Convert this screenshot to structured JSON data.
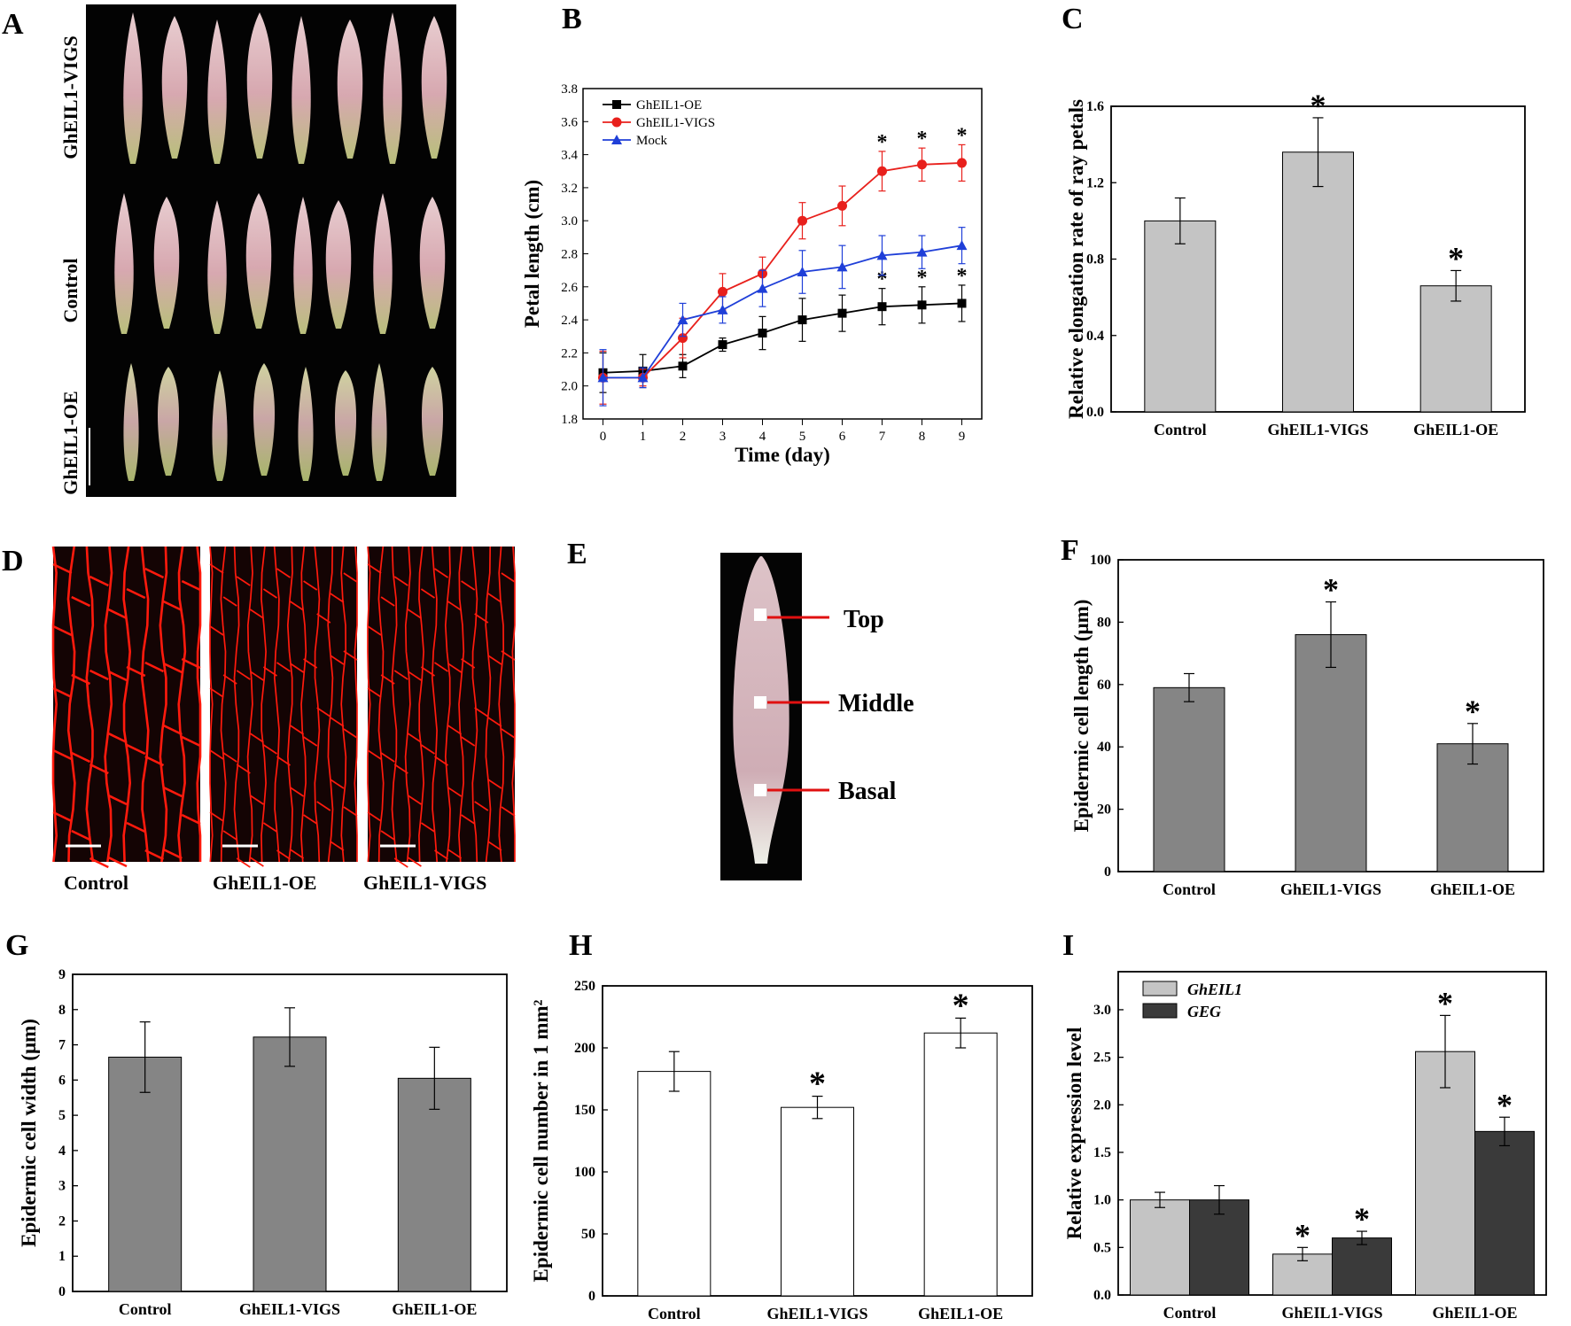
{
  "panel_letters": [
    "A",
    "B",
    "C",
    "D",
    "E",
    "F",
    "G",
    "H",
    "I"
  ],
  "colors": {
    "oe": "#000000",
    "vigs": "#e8201c",
    "mock": "#1f3fd8",
    "light_bar": "#c4c4c4",
    "mid_bar": "#858585",
    "dark_bar": "#3a3a3a",
    "cell_wall": "#ff1a0d"
  },
  "panel_a": {
    "row_labels": [
      "GhEIL1-VIGS",
      "Control",
      "GhEIL1-OE"
    ]
  },
  "panel_d": {
    "image_labels": [
      "Control",
      "GhEIL1-OE",
      "GhEIL1-VIGS"
    ]
  },
  "panel_e": {
    "regions": [
      "Top",
      "Middle",
      "Basal"
    ]
  },
  "chart_data": [
    {
      "panel": "B",
      "type": "line",
      "title": "",
      "xlabel": "Time (day)",
      "ylabel": "Petal length (cm)",
      "x": [
        0,
        1,
        2,
        3,
        4,
        5,
        6,
        7,
        8,
        9
      ],
      "xlim": [
        -0.5,
        9.5
      ],
      "ylim": [
        1.8,
        3.8
      ],
      "yticks": [
        "1.8",
        "2.0",
        "2.2",
        "2.4",
        "2.6",
        "2.8",
        "3.0",
        "3.2",
        "3.4",
        "3.6",
        "3.8"
      ],
      "legend": "top-left",
      "series": [
        {
          "name": "GhEIL1-OE",
          "marker": "square",
          "values": [
            2.08,
            2.09,
            2.12,
            2.25,
            2.32,
            2.4,
            2.44,
            2.48,
            2.49,
            2.5
          ],
          "errors": [
            0.12,
            0.1,
            0.07,
            0.04,
            0.1,
            0.13,
            0.11,
            0.11,
            0.11,
            0.11
          ],
          "significant": [
            false,
            false,
            false,
            false,
            false,
            false,
            false,
            true,
            true,
            true
          ]
        },
        {
          "name": "GhEIL1-VIGS",
          "marker": "circle",
          "values": [
            2.05,
            2.05,
            2.29,
            2.57,
            2.68,
            3.0,
            3.09,
            3.3,
            3.34,
            3.35
          ],
          "errors": [
            0.16,
            0.05,
            0.12,
            0.11,
            0.1,
            0.11,
            0.12,
            0.12,
            0.1,
            0.11
          ],
          "significant": [
            false,
            false,
            false,
            false,
            false,
            false,
            false,
            true,
            true,
            true
          ]
        },
        {
          "name": "Mock",
          "marker": "triangle",
          "values": [
            2.05,
            2.05,
            2.4,
            2.46,
            2.59,
            2.69,
            2.72,
            2.79,
            2.81,
            2.85
          ],
          "errors": [
            0.17,
            0.06,
            0.1,
            0.08,
            0.11,
            0.13,
            0.13,
            0.12,
            0.1,
            0.11
          ],
          "significant": [
            false,
            false,
            false,
            false,
            false,
            false,
            false,
            false,
            false,
            false
          ]
        }
      ]
    },
    {
      "panel": "C",
      "type": "bar",
      "title": "",
      "xlabel": "",
      "ylabel": "Relative elongation rate of ray petals",
      "categories": [
        "Control",
        "GhEIL1-VIGS",
        "GhEIL1-OE"
      ],
      "values": [
        1.0,
        1.36,
        0.66
      ],
      "errors": [
        0.12,
        0.18,
        0.08
      ],
      "significant": [
        false,
        true,
        true
      ],
      "ylim": [
        0,
        1.6
      ],
      "yticks": [
        "0.0",
        "0.4",
        "0.8",
        "1.2",
        "1.6"
      ]
    },
    {
      "panel": "F",
      "type": "bar",
      "title": "",
      "xlabel": "",
      "ylabel": "Epidermic cell length (μm)",
      "categories": [
        "Control",
        "GhEIL1-VIGS",
        "GhEIL1-OE"
      ],
      "values": [
        59,
        76,
        41
      ],
      "errors": [
        4.5,
        10.5,
        6.5
      ],
      "significant": [
        false,
        true,
        true
      ],
      "ylim": [
        0,
        100
      ],
      "yticks": [
        "0",
        "20",
        "40",
        "60",
        "80",
        "100"
      ]
    },
    {
      "panel": "G",
      "type": "bar",
      "title": "",
      "xlabel": "",
      "ylabel": "Epidermic cell width (μm)",
      "categories": [
        "Control",
        "GhEIL1-VIGS",
        "GhEIL1-OE"
      ],
      "values": [
        6.65,
        7.22,
        6.05
      ],
      "errors": [
        1.0,
        0.83,
        0.88
      ],
      "significant": [
        false,
        false,
        false
      ],
      "ylim": [
        0,
        9
      ],
      "yticks": [
        "0",
        "1",
        "2",
        "3",
        "4",
        "5",
        "6",
        "7",
        "8",
        "9"
      ]
    },
    {
      "panel": "H",
      "type": "bar",
      "title": "",
      "xlabel": "",
      "ylabel": "Epidermic cell number in 1 mm²",
      "categories": [
        "Control",
        "GhEIL1-VIGS",
        "GhEIL1-OE"
      ],
      "values": [
        181,
        152,
        212
      ],
      "errors": [
        16,
        9,
        12
      ],
      "significant": [
        false,
        true,
        true
      ],
      "ylim": [
        0,
        250
      ],
      "yticks": [
        "0",
        "50",
        "100",
        "150",
        "200",
        "250"
      ]
    },
    {
      "panel": "I",
      "type": "bar",
      "title": "",
      "xlabel": "",
      "ylabel": "Relative expression level",
      "categories": [
        "Control",
        "GhEIL1-VIGS",
        "GhEIL1-OE"
      ],
      "ylim": [
        0,
        3.4
      ],
      "yticks": [
        "0.0",
        "0.5",
        "1.0",
        "1.5",
        "2.0",
        "2.5",
        "3.0"
      ],
      "legend": "top-left",
      "series": [
        {
          "name": "GhEIL1",
          "values": [
            1.0,
            0.43,
            2.56
          ],
          "errors": [
            0.08,
            0.07,
            0.38
          ],
          "significant": [
            false,
            true,
            true
          ]
        },
        {
          "name": "GEG",
          "values": [
            1.0,
            0.6,
            1.72
          ],
          "errors": [
            0.15,
            0.07,
            0.15
          ],
          "significant": [
            false,
            true,
            true
          ]
        }
      ]
    }
  ]
}
